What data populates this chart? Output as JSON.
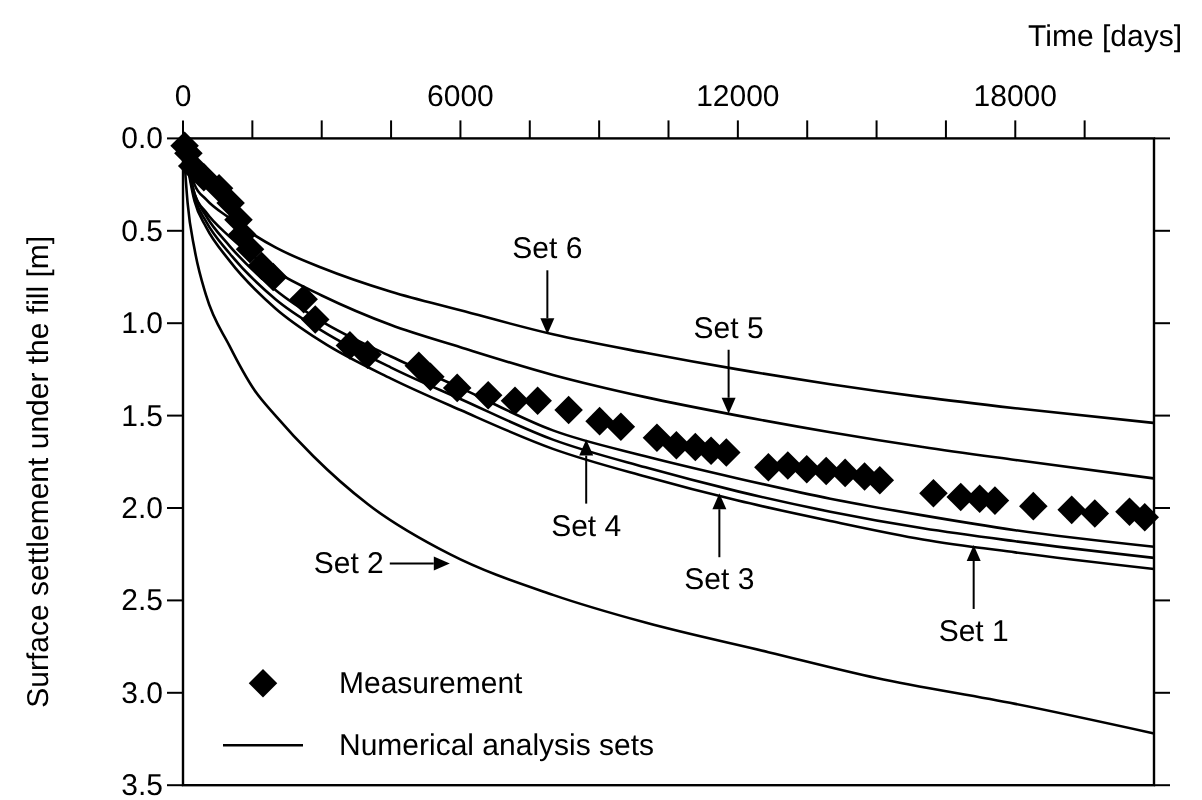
{
  "chart_data": {
    "type": "line",
    "xlabel": "Time [days]",
    "ylabel": "Surface settlement under the fill [m]",
    "xlim": [
      0,
      21000
    ],
    "xticks": [
      0,
      {
        "value": 1500,
        "label": null
      },
      {
        "value": 3000,
        "label": null
      },
      {
        "value": 4500,
        "label": null
      },
      6000,
      {
        "value": 7500,
        "label": null
      },
      {
        "value": 9000,
        "label": null
      },
      {
        "value": 10500,
        "label": null
      },
      12000,
      {
        "value": 13500,
        "label": null
      },
      {
        "value": 15000,
        "label": null
      },
      {
        "value": 16500,
        "label": null
      },
      18000,
      {
        "value": 19500,
        "label": null
      }
    ],
    "ylim": [
      3.5,
      0
    ],
    "yticks": [
      {
        "value": 0,
        "label": "0.0"
      },
      0.5,
      {
        "value": 1,
        "label": "1.0"
      },
      1.5,
      {
        "value": 2,
        "label": "2.0"
      },
      2.5,
      {
        "value": 3,
        "label": "3.0"
      },
      3.5
    ],
    "grid": false,
    "legend": "bottom left",
    "series": [
      {
        "name": "Measurement",
        "type": "scatter",
        "marker": "diamond",
        "color": "#000000",
        "x": [
          35,
          117,
          200,
          450,
          780,
          1030,
          1200,
          1280,
          1450,
          1700,
          1950,
          2610,
          2860,
          3610,
          3990,
          5100,
          5350,
          5930,
          6600,
          7180,
          7670,
          8340,
          9010,
          9470,
          10250,
          10670,
          11080,
          11420,
          11750,
          12660,
          13080,
          13490,
          13910,
          14320,
          14740,
          15070,
          16230,
          16820,
          17230,
          17560,
          18390,
          19220,
          19720,
          20470,
          20800
        ],
        "values": [
          0.04,
          0.08,
          0.15,
          0.21,
          0.27,
          0.35,
          0.44,
          0.52,
          0.6,
          0.69,
          0.75,
          0.87,
          0.98,
          1.12,
          1.17,
          1.23,
          1.29,
          1.35,
          1.39,
          1.42,
          1.42,
          1.47,
          1.53,
          1.56,
          1.62,
          1.66,
          1.67,
          1.69,
          1.7,
          1.78,
          1.77,
          1.79,
          1.8,
          1.81,
          1.83,
          1.85,
          1.92,
          1.94,
          1.95,
          1.96,
          1.99,
          2.01,
          2.03,
          2.02,
          2.05
        ]
      },
      {
        "name": "Numerical analysis sets",
        "type": "line",
        "marker": "none",
        "line_style": "solid",
        "color": "#000000",
        "x": [
          0,
          250,
          500,
          1000,
          2000,
          3000,
          4500,
          6000,
          8000,
          10000,
          12000,
          14000,
          16000,
          18000,
          21000
        ],
        "values": [
          0,
          0.34,
          0.48,
          0.66,
          0.92,
          1.1,
          1.3,
          1.47,
          1.68,
          1.83,
          1.96,
          2.07,
          2.17,
          2.24,
          2.33
        ]
      },
      {
        "marker": "none",
        "line_style": "solid",
        "color": "#000000",
        "x": [
          0,
          100,
          250,
          500,
          1000,
          1540,
          2000,
          2820,
          4000,
          5770,
          8000,
          10000,
          12660,
          15000,
          18000,
          21000
        ],
        "values": [
          0,
          0.35,
          0.6,
          0.85,
          1.12,
          1.36,
          1.5,
          1.72,
          1.98,
          2.25,
          2.47,
          2.62,
          2.78,
          2.92,
          3.06,
          3.22
        ]
      },
      {
        "type": "line",
        "marker": "none",
        "line_style": "solid",
        "color": "#000000",
        "x": [
          0,
          250,
          500,
          1000,
          2000,
          3000,
          4500,
          6000,
          8000,
          10000,
          12000,
          14000,
          16000,
          18000,
          21000
        ],
        "values": [
          0,
          0.32,
          0.45,
          0.62,
          0.87,
          1.04,
          1.24,
          1.41,
          1.63,
          1.78,
          1.91,
          2.02,
          2.11,
          2.18,
          2.27
        ]
      },
      {
        "type": "line",
        "marker": "none",
        "line_style": "solid",
        "color": "#000000",
        "x": [
          0,
          250,
          500,
          1000,
          2000,
          3000,
          4500,
          6000,
          8000,
          10000,
          12000,
          14000,
          16000,
          18000,
          21000
        ],
        "values": [
          0,
          0.3,
          0.42,
          0.58,
          0.82,
          0.99,
          1.18,
          1.35,
          1.58,
          1.72,
          1.84,
          1.95,
          2.04,
          2.12,
          2.21
        ]
      },
      {
        "type": "line",
        "marker": "none",
        "line_style": "solid",
        "color": "#000000",
        "x": [
          0,
          250,
          500,
          1000,
          2000,
          3000,
          4500,
          6000,
          8000,
          10000,
          12000,
          14000,
          16000,
          18000,
          21000
        ],
        "values": [
          0,
          0.3,
          0.4,
          0.53,
          0.72,
          0.85,
          1.01,
          1.13,
          1.28,
          1.4,
          1.5,
          1.59,
          1.67,
          1.74,
          1.84
        ]
      },
      {
        "type": "line",
        "marker": "none",
        "line_style": "solid",
        "color": "#000000",
        "x": [
          0,
          250,
          500,
          1000,
          2000,
          3000,
          4500,
          6000,
          8000,
          10000,
          12000,
          14000,
          16000,
          18000,
          21000
        ],
        "values": [
          0,
          0.25,
          0.33,
          0.43,
          0.59,
          0.7,
          0.83,
          0.93,
          1.06,
          1.16,
          1.25,
          1.33,
          1.4,
          1.46,
          1.54
        ]
      }
    ],
    "annotations": [
      {
        "text": "Set 6",
        "x": 7880,
        "y": 1.06
      },
      {
        "text": "Set 5",
        "x": 11800,
        "y": 1.49
      },
      {
        "text": "Set 4",
        "x": 8720,
        "y": 1.63
      },
      {
        "text": "Set 3",
        "x": 11600,
        "y": 1.92
      },
      {
        "text": "Set 2",
        "x": 5770,
        "y": 2.3
      },
      {
        "text": "Set 1",
        "x": 17100,
        "y": 2.2
      }
    ]
  }
}
